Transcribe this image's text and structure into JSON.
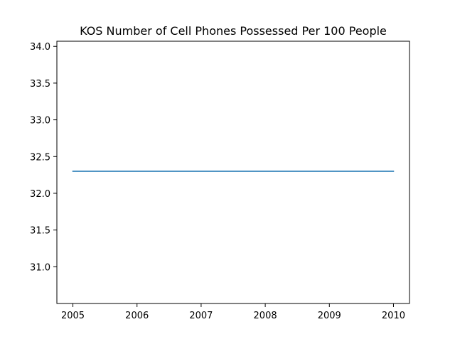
{
  "chart_data": {
    "type": "line",
    "title": "KOS Number of Cell Phones Possessed Per 100 People",
    "xlabel": "",
    "ylabel": "",
    "x": [
      2005,
      2006,
      2007,
      2008,
      2009,
      2010
    ],
    "series": [
      {
        "values": [
          32.3,
          32.3,
          32.3,
          32.3,
          32.3,
          32.3
        ],
        "color": "#1f77b4"
      }
    ],
    "xlim": [
      2004.75,
      2010.25
    ],
    "ylim": [
      30.5,
      34.07
    ],
    "x_ticks": [
      2005,
      2006,
      2007,
      2008,
      2009,
      2010
    ],
    "x_tick_labels": [
      "2005",
      "2006",
      "2007",
      "2008",
      "2009",
      "2010"
    ],
    "y_ticks": [
      31.0,
      31.5,
      32.0,
      32.5,
      33.0,
      33.5,
      34.0
    ],
    "y_tick_labels": [
      "31.0",
      "31.5",
      "32.0",
      "32.5",
      "33.0",
      "33.5",
      "34.0"
    ],
    "grid": false,
    "legend": "none"
  }
}
